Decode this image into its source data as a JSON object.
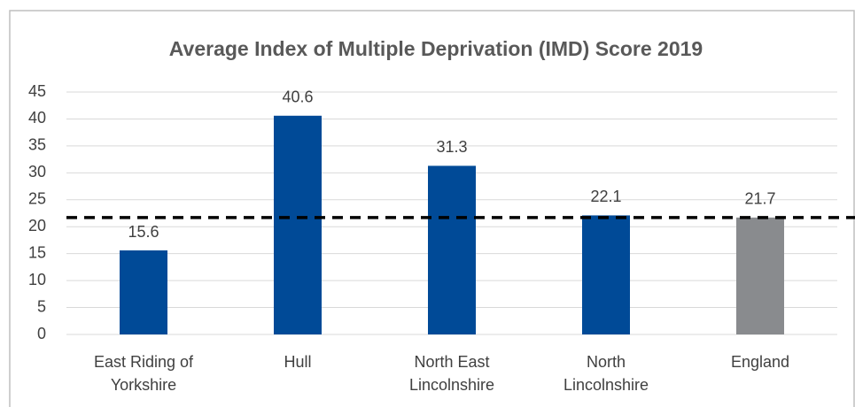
{
  "chart_data": {
    "type": "bar",
    "title": "Average Index of Multiple Deprivation (IMD) Score 2019",
    "categories": [
      "East Riding of Yorkshire",
      "Hull",
      "North East Lincolnshire",
      "North Lincolnshire",
      "England"
    ],
    "values": [
      15.6,
      40.6,
      31.3,
      22.1,
      21.7
    ],
    "colors": [
      "#004a97",
      "#004a97",
      "#004a97",
      "#004a97",
      "#898b8e"
    ],
    "ylim": [
      0,
      45
    ],
    "yticks": [
      0,
      5,
      10,
      15,
      20,
      25,
      30,
      35,
      40,
      45
    ],
    "grid": true
  }
}
